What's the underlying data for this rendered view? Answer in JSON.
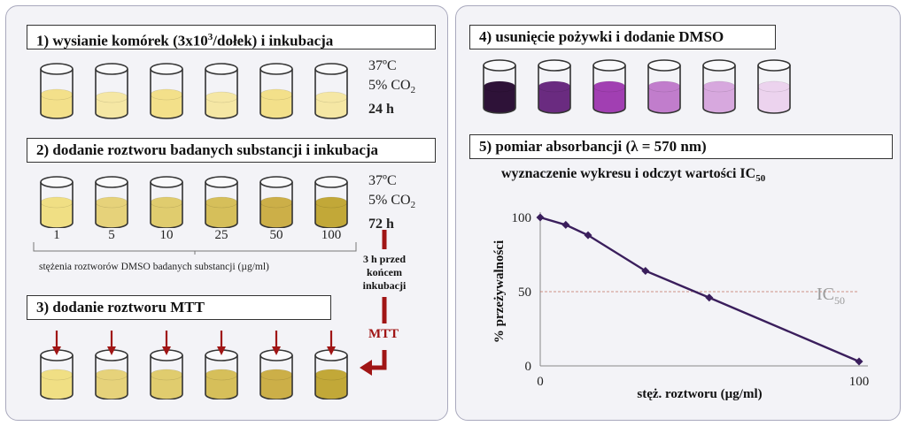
{
  "step1": {
    "title_prefix": "1) wysianie komórek (3x10",
    "title_sup": "3",
    "title_suffix": "/dołek) i  inkubacja",
    "temp": "37ºC",
    "co2_prefix": "5% CO",
    "co2_sub": "2",
    "time": "24 h",
    "wells": [
      {
        "liquid": "#f3e08a",
        "level": 0.42
      },
      {
        "liquid": "#f5e7a4",
        "level": 0.36
      },
      {
        "liquid": "#f3e08a",
        "level": 0.42
      },
      {
        "liquid": "#f5e7a4",
        "level": 0.36
      },
      {
        "liquid": "#f3e08a",
        "level": 0.42
      },
      {
        "liquid": "#f5e7a4",
        "level": 0.36
      }
    ]
  },
  "step2": {
    "title": "2) dodanie roztworu badanych substancji i inkubacja",
    "temp": "37ºC",
    "co2_prefix": "5% CO",
    "co2_sub": "2",
    "time": "72 h",
    "concentrations": [
      "1",
      "5",
      "10",
      "25",
      "50",
      "100"
    ],
    "note": "stężenia roztworów DMSO  badanych substancji (µg/ml)",
    "wells": [
      {
        "liquid": "#f0df84",
        "level": 0.5
      },
      {
        "liquid": "#e6d27a",
        "level": 0.5
      },
      {
        "liquid": "#e0cc6e",
        "level": 0.5
      },
      {
        "liquid": "#d6bf5a",
        "level": 0.5
      },
      {
        "liquid": "#ccaf48",
        "level": 0.5
      },
      {
        "liquid": "#c2a838",
        "level": 0.5
      }
    ]
  },
  "side_note": {
    "line1": "3 h przed",
    "line2": "końcem",
    "line3": "inkubacji",
    "mtt": "MTT"
  },
  "step3": {
    "title": "3) dodanie roztworu MTT",
    "wells": [
      {
        "liquid": "#f0df84",
        "level": 0.5
      },
      {
        "liquid": "#e6d27a",
        "level": 0.5
      },
      {
        "liquid": "#e0cc6e",
        "level": 0.5
      },
      {
        "liquid": "#d6bf5a",
        "level": 0.5
      },
      {
        "liquid": "#ccaf48",
        "level": 0.5
      },
      {
        "liquid": "#c2a838",
        "level": 0.5
      }
    ]
  },
  "step4": {
    "title": "4) usunięcie pożywki i dodanie DMSO",
    "wells": [
      {
        "liquid": "#2e1238",
        "level": 0.5
      },
      {
        "liquid": "#6a2b80",
        "level": 0.5
      },
      {
        "liquid": "#a13fb2",
        "level": 0.5
      },
      {
        "liquid": "#c17dcc",
        "level": 0.5
      },
      {
        "liquid": "#d7a8de",
        "level": 0.5
      },
      {
        "liquid": "#ecd3ee",
        "level": 0.5
      }
    ]
  },
  "step5": {
    "title": "5) pomiar absorbancji (λ = 570 nm)",
    "subtitle_prefix": "wyznaczenie wykresu  i odczyt wartości IC",
    "subtitle_sub": "50"
  },
  "colors": {
    "arrow": "#a01515",
    "line": "#3a1e5c",
    "ic50_line": "#c07060",
    "ic50_text": "#9a9a9a"
  },
  "chart_data": {
    "type": "line",
    "x": [
      0,
      8,
      15,
      33,
      53,
      100
    ],
    "series": [
      {
        "values": [
          100,
          95,
          88,
          64,
          46,
          3
        ]
      }
    ],
    "xticks": [
      "0",
      "100"
    ],
    "yticks": [
      "0",
      "50",
      "100"
    ],
    "xlabel": "stęż. roztworu (µg/ml)",
    "ylabel": "% przeżywalności",
    "xlim": [
      0,
      100
    ],
    "ylim": [
      0,
      100
    ],
    "reference_line": {
      "y": 50,
      "label_prefix": "IC",
      "label_sub": "50"
    },
    "grid": false
  }
}
